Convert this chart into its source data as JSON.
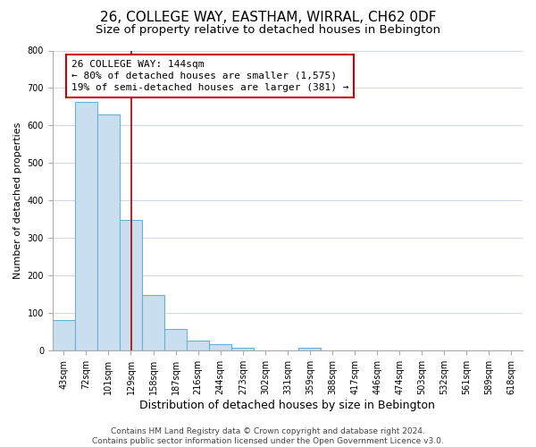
{
  "title": "26, COLLEGE WAY, EASTHAM, WIRRAL, CH62 0DF",
  "subtitle": "Size of property relative to detached houses in Bebington",
  "xlabel": "Distribution of detached houses by size in Bebington",
  "ylabel": "Number of detached properties",
  "bar_labels": [
    "43sqm",
    "72sqm",
    "101sqm",
    "129sqm",
    "158sqm",
    "187sqm",
    "216sqm",
    "244sqm",
    "273sqm",
    "302sqm",
    "331sqm",
    "359sqm",
    "388sqm",
    "417sqm",
    "446sqm",
    "474sqm",
    "503sqm",
    "532sqm",
    "561sqm",
    "589sqm",
    "618sqm"
  ],
  "bar_values": [
    82,
    663,
    630,
    348,
    148,
    57,
    27,
    18,
    8,
    0,
    0,
    7,
    0,
    0,
    0,
    0,
    0,
    0,
    0,
    0,
    0
  ],
  "bar_color": "#c9dff0",
  "bar_edge_color": "#6aafd6",
  "vline_color": "#aa0000",
  "ylim": [
    0,
    800
  ],
  "yticks": [
    0,
    100,
    200,
    300,
    400,
    500,
    600,
    700,
    800
  ],
  "annotation_title": "26 COLLEGE WAY: 144sqm",
  "annotation_line1": "← 80% of detached houses are smaller (1,575)",
  "annotation_line2": "19% of semi-detached houses are larger (381) →",
  "annotation_box_color": "#ffffff",
  "annotation_box_edge": "#cc0000",
  "footer_line1": "Contains HM Land Registry data © Crown copyright and database right 2024.",
  "footer_line2": "Contains public sector information licensed under the Open Government Licence v3.0.",
  "background_color": "#ffffff",
  "grid_color": "#d0d8e8",
  "title_fontsize": 11,
  "subtitle_fontsize": 9.5,
  "xlabel_fontsize": 9,
  "ylabel_fontsize": 8,
  "tick_fontsize": 7,
  "annotation_fontsize": 8,
  "footer_fontsize": 6.5,
  "vline_bin_index": 3.52
}
